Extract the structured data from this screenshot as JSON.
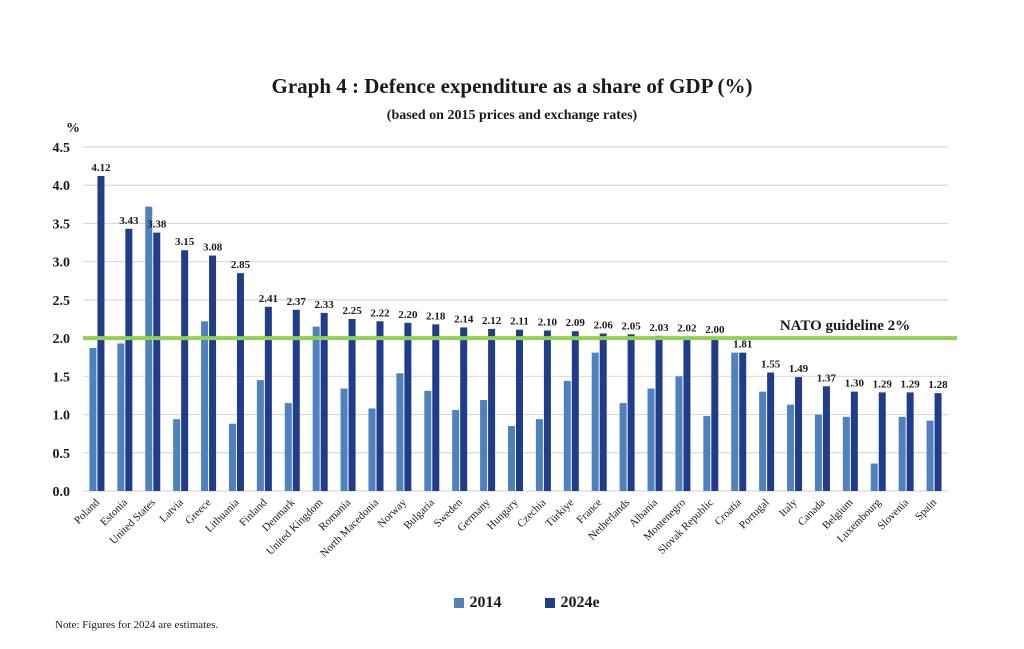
{
  "chart_data": {
    "type": "bar",
    "title": "Graph 4 : Defence expenditure as a share of GDP (%)",
    "subtitle": "(based on 2015 prices and exchange rates)",
    "ylabel": "%",
    "xlabel": "",
    "ylim": [
      0,
      4.5
    ],
    "yticks": [
      "0.0",
      "0.5",
      "1.0",
      "1.5",
      "2.0",
      "2.5",
      "3.0",
      "3.5",
      "4.0",
      "4.5"
    ],
    "grid": true,
    "legend_position": "bottom",
    "categories": [
      "Poland",
      "Estonia",
      "United States",
      "Latvia",
      "Greece",
      "Lithuania",
      "Finland",
      "Denmark",
      "United Kingdom",
      "Romania",
      "North Macedonia",
      "Norway",
      "Bulgaria",
      "Sweden",
      "Germany",
      "Hungary",
      "Czechia",
      "Türkiye",
      "France",
      "Netherlands",
      "Albania",
      "Montenegro",
      "Slovak Republic",
      "Croatia",
      "Portugal",
      "Italy",
      "Canada",
      "Belgium",
      "Luxembourg",
      "Slovenia",
      "Spain"
    ],
    "series": [
      {
        "name": "2014",
        "color": "#4f81bd",
        "labeled": false,
        "values": [
          1.87,
          1.93,
          3.72,
          0.94,
          2.22,
          0.88,
          1.45,
          1.15,
          2.15,
          1.34,
          1.08,
          1.54,
          1.31,
          1.06,
          1.19,
          0.85,
          0.94,
          1.44,
          1.81,
          1.15,
          1.34,
          1.5,
          0.98,
          1.81,
          1.3,
          1.13,
          1.0,
          0.97,
          0.36,
          0.97,
          0.92
        ]
      },
      {
        "name": "2024e",
        "color": "#1f3d8a",
        "labeled": true,
        "values": [
          4.12,
          3.43,
          3.38,
          3.15,
          3.08,
          2.85,
          2.41,
          2.37,
          2.33,
          2.25,
          2.22,
          2.2,
          2.18,
          2.14,
          2.12,
          2.11,
          2.1,
          2.09,
          2.06,
          2.05,
          2.03,
          2.02,
          2.0,
          1.81,
          1.55,
          1.49,
          1.37,
          1.3,
          1.29,
          1.29,
          1.28
        ]
      }
    ],
    "reference_line": {
      "value": 2.0,
      "label": "NATO guideline 2%",
      "color": "#92d050"
    },
    "note": "Note: Figures for 2024 are estimates."
  }
}
